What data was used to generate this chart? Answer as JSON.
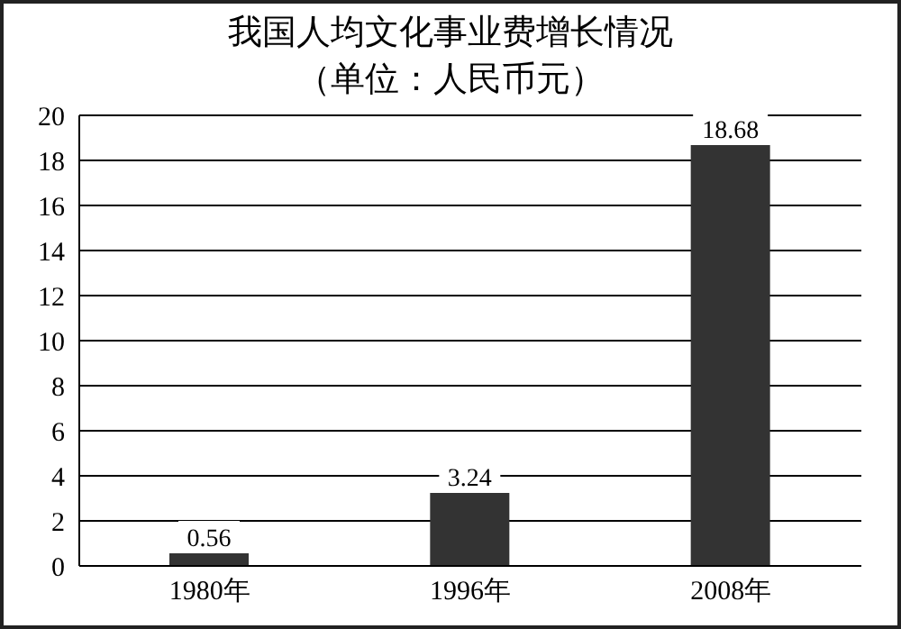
{
  "chart_data": {
    "type": "bar",
    "title": "我国人均文化事业费增长情况",
    "subtitle": "（单位：人民币元）",
    "categories": [
      "1980年",
      "1996年",
      "2008年"
    ],
    "values": [
      0.56,
      3.24,
      18.68
    ],
    "color": "#333333",
    "ylim": [
      0,
      20
    ],
    "yticks": [
      0,
      2,
      4,
      6,
      8,
      10,
      12,
      14,
      16,
      18,
      20
    ],
    "grid": "y",
    "data_labels": true
  }
}
